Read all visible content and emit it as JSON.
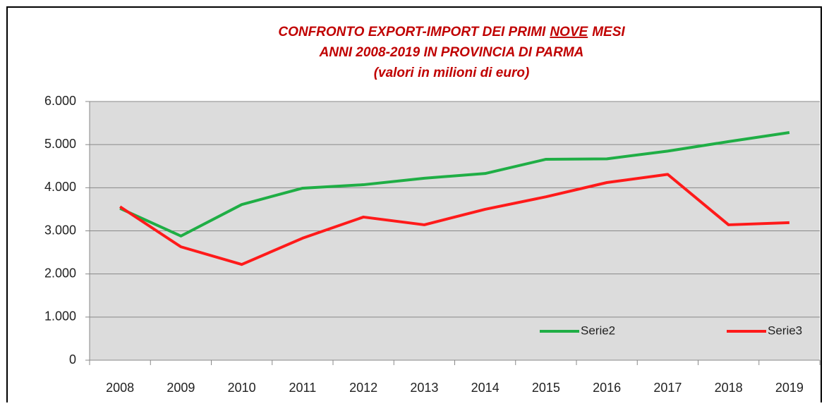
{
  "chart_data": {
    "type": "line",
    "title": [
      [
        "CONFRONTO EXPORT-IMPORT DEI PRIMI",
        "NOVE",
        "MESI"
      ],
      "ANNI 2008-2019 IN PROVINCIA DI PARMA",
      "(valori in milioni di euro)"
    ],
    "categories": [
      "2008",
      "2009",
      "2010",
      "2011",
      "2012",
      "2013",
      "2014",
      "2015",
      "2016",
      "2017",
      "2018",
      "2019"
    ],
    "series": [
      {
        "name": "Serie2",
        "color": "#1fae45",
        "values": [
          3520,
          2880,
          3610,
          3990,
          4070,
          4220,
          4330,
          4660,
          4670,
          4850,
          5070,
          5280
        ]
      },
      {
        "name": "Serie3",
        "color": "#ff1a1a",
        "values": [
          3560,
          2630,
          2220,
          2830,
          3320,
          3140,
          3500,
          3790,
          4120,
          4310,
          3140,
          3190
        ]
      }
    ],
    "ylim": [
      0,
      6000
    ],
    "yticks": [
      0,
      {
        "value": 1000,
        "label": "1.000"
      },
      {
        "value": 2000,
        "label": "2.000"
      },
      {
        "value": 3000,
        "label": "3.000"
      },
      {
        "value": 4000,
        "label": "4.000"
      },
      {
        "value": 5000,
        "label": "5.000"
      },
      {
        "value": 6000,
        "label": "6.000"
      }
    ],
    "grid": true,
    "legend": "bottom-right"
  }
}
